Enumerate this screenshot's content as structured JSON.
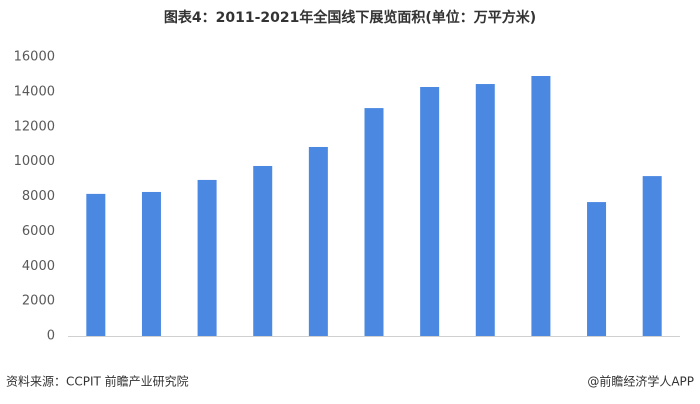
{
  "chart_data": {
    "type": "bar",
    "title": "图表4：2011-2021年全国线下展览面积(单位：万平方米)",
    "categories": [
      null,
      null,
      null,
      null,
      null,
      null,
      null,
      null,
      null,
      null,
      null
    ],
    "values": [
      8150,
      8260,
      8950,
      9750,
      10840,
      13070,
      14280,
      14450,
      14910,
      7680,
      9170
    ],
    "color": "#4a88e2",
    "ylim": [
      0,
      16000
    ],
    "yticks": [
      0,
      2000,
      4000,
      6000,
      8000,
      10000,
      12000,
      14000,
      16000
    ],
    "grid": false,
    "source": "资料来源：CCPIT 前瞻产业研究院",
    "credit": "@前瞻经济学人APP"
  }
}
